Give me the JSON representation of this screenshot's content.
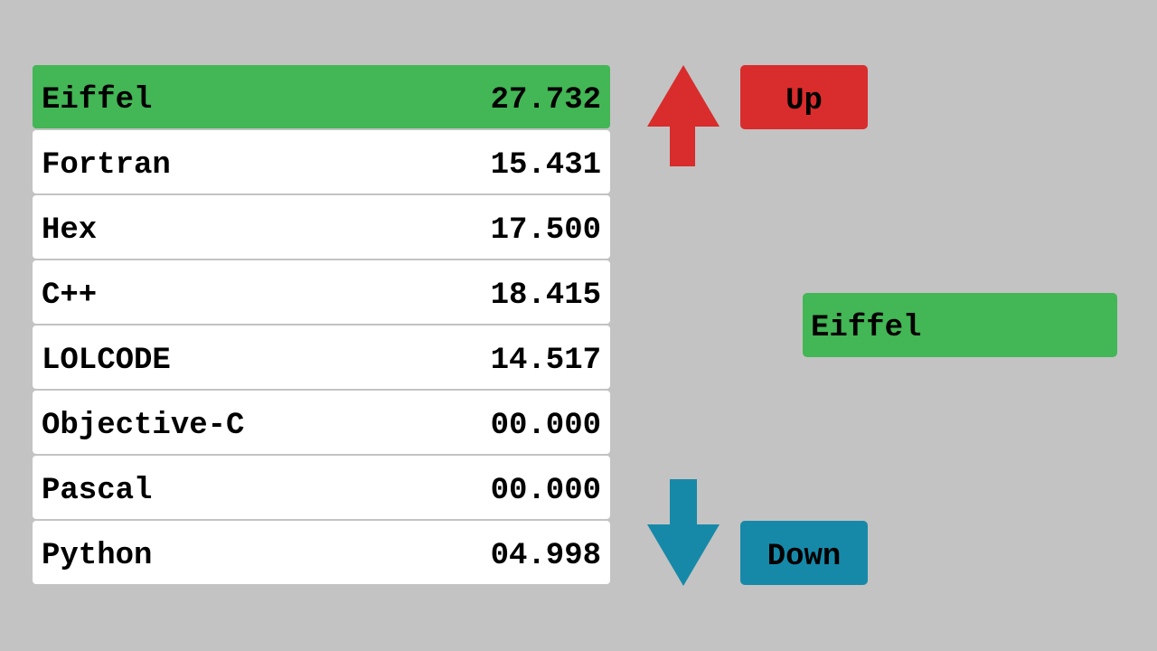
{
  "list": {
    "items": [
      {
        "label": "Eiffel",
        "value": "27.732",
        "selected": true
      },
      {
        "label": "Fortran",
        "value": "15.431",
        "selected": false
      },
      {
        "label": "Hex",
        "value": "17.500",
        "selected": false
      },
      {
        "label": "C++",
        "value": "18.415",
        "selected": false
      },
      {
        "label": "LOLCODE",
        "value": "14.517",
        "selected": false
      },
      {
        "label": "Objective-C",
        "value": "00.000",
        "selected": false
      },
      {
        "label": "Pascal",
        "value": "00.000",
        "selected": false
      },
      {
        "label": "Python",
        "value": "04.998",
        "selected": false
      }
    ]
  },
  "controls": {
    "up_label": "Up",
    "down_label": "Down",
    "up_color": "#d92c2c",
    "down_color": "#1789a8",
    "up_icon": "arrow-up-icon",
    "down_icon": "arrow-down-icon"
  },
  "selection": {
    "current": "Eiffel",
    "color": "#43b655"
  }
}
